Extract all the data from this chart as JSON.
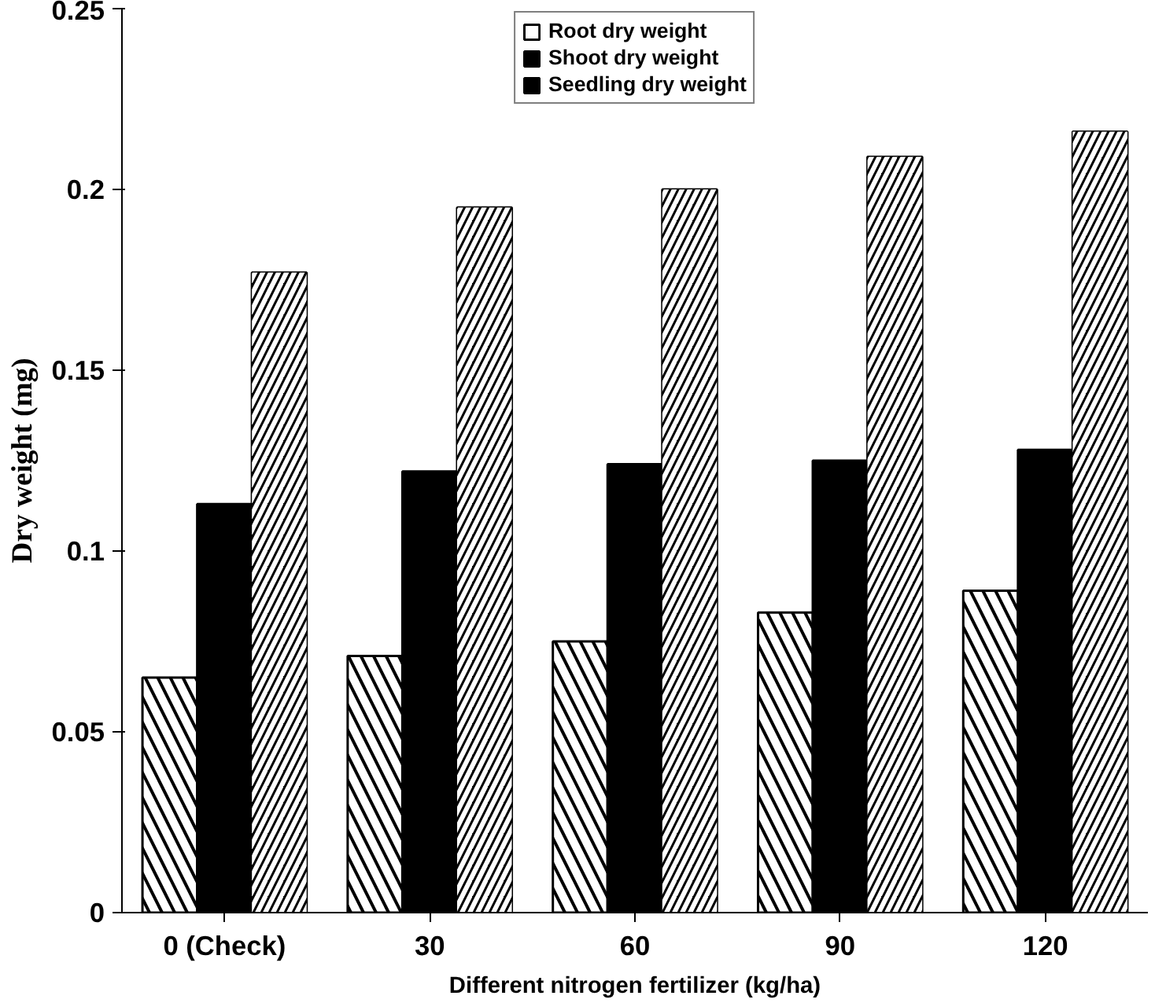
{
  "chart_data": {
    "type": "bar",
    "xlabel": "Different nitrogen fertilizer (kg/ha)",
    "ylabel": "Dry weight (mg)",
    "categories": [
      "0 (Check)",
      "30",
      "60",
      "90",
      "120"
    ],
    "series": [
      {
        "name": "Root dry weight",
        "color": "#ffffff",
        "values": [
          0.065,
          0.071,
          0.075,
          0.083,
          0.089
        ]
      },
      {
        "name": "Shoot dry weight",
        "color": "#000000",
        "values": [
          0.113,
          0.122,
          0.124,
          0.125,
          0.128
        ]
      },
      {
        "name": "Seedling dry weight",
        "color": "#000000",
        "values": [
          0.177,
          0.195,
          0.2,
          0.209,
          0.216
        ]
      }
    ],
    "ylim": [
      0,
      0.25
    ],
    "yticks": [
      0,
      0.05,
      0.1,
      0.15,
      0.2,
      0.25
    ],
    "grid": false,
    "legend": "top"
  }
}
